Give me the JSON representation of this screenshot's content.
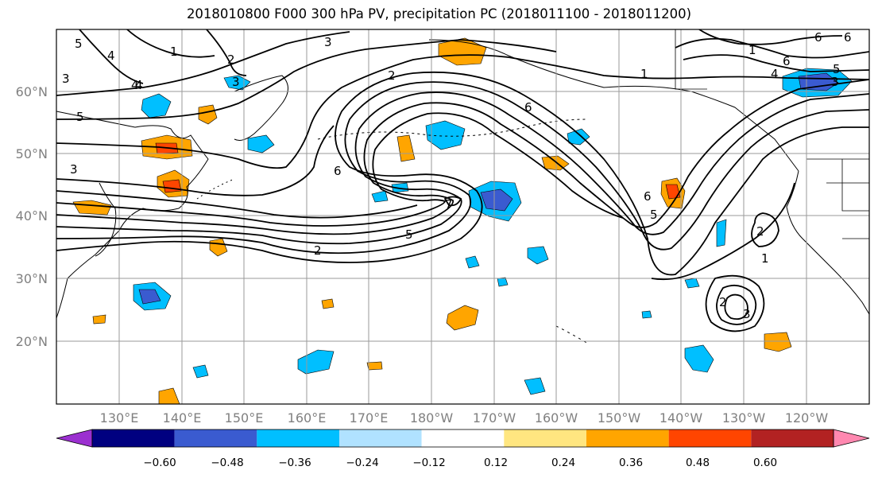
{
  "title": "2018010800 F000 300 hPa PV, precipitation PC (2018011100 - 2018011200)",
  "lat_labels": [
    "60°N",
    "50°N",
    "40°N",
    "30°N",
    "20°N"
  ],
  "lon_labels": [
    "130°E",
    "140°E",
    "150°E",
    "160°E",
    "170°E",
    "180°W",
    "170°W",
    "160°W",
    "150°W",
    "140°W",
    "130°W",
    "120°W"
  ],
  "colorbar": {
    "ticks": [
      "−0.60",
      "−0.48",
      "−0.36",
      "−0.24",
      "−0.12",
      "0.12",
      "0.24",
      "0.36",
      "0.48",
      "0.60"
    ],
    "colors": [
      "#9b30d0",
      "#000080",
      "#3a5bd0",
      "#00bfff",
      "#b0e2ff",
      "#ffffff",
      "#ffe680",
      "#ffa500",
      "#ff4500",
      "#b22222",
      "#ff88b0"
    ]
  },
  "contour_labels": [
    "5",
    "4",
    "3",
    "2",
    "1",
    "2",
    "3",
    "5",
    "4",
    "6",
    "3",
    "5",
    "6",
    "7",
    "5",
    "2",
    "3",
    "1",
    "6",
    "5",
    "4",
    "3",
    "6",
    "6",
    "1",
    "2",
    "1",
    "2",
    "3",
    "4",
    "6"
  ]
}
